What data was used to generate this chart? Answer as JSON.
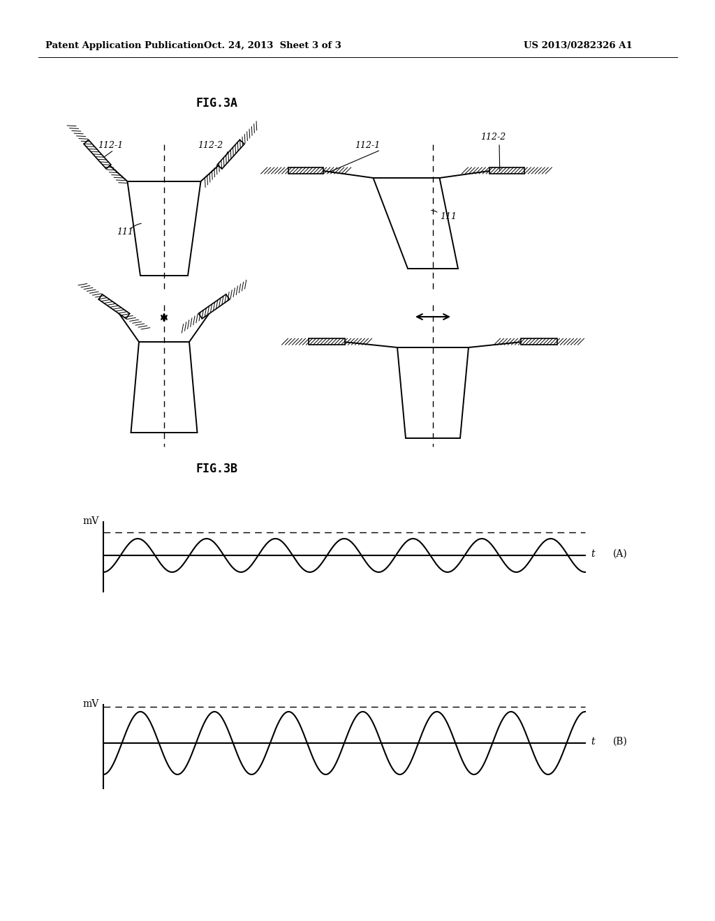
{
  "background_color": "#ffffff",
  "header_left": "Patent Application Publication",
  "header_mid": "Oct. 24, 2013  Sheet 3 of 3",
  "header_right": "US 2013/0282326 A1",
  "fig3a_title": "FIG.3A",
  "fig3b_title": "FIG.3B",
  "label_111": "111",
  "label_112_1": "112-1",
  "label_112_2": "112-2",
  "label_mV": "mV",
  "label_t": "t",
  "label_A": "(A)",
  "label_B": "(B)"
}
